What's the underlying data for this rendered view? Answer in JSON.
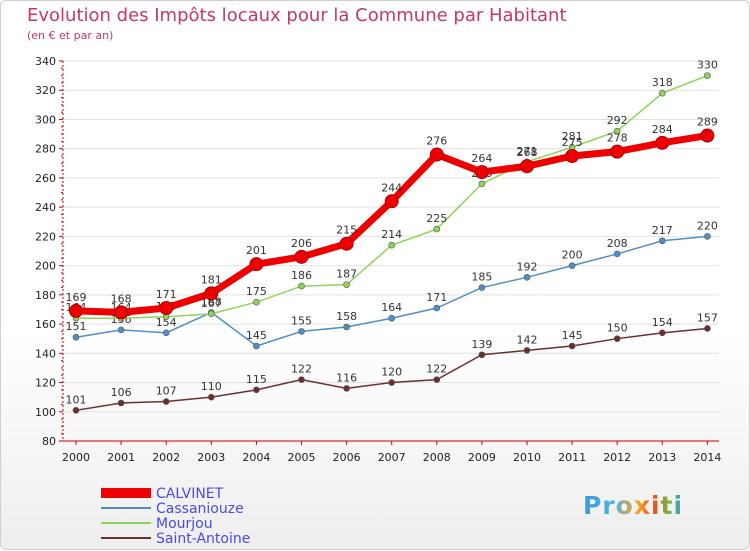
{
  "title": "Evolution des Impôts locaux pour la Commune par Habitant",
  "subtitle": "(en € et par an)",
  "logo_text": "Proxiti",
  "chart_data": {
    "type": "line",
    "x": [
      "2000",
      "2001",
      "2002",
      "2003",
      "2004",
      "2005",
      "2006",
      "2007",
      "2008",
      "2009",
      "2010",
      "2011",
      "2012",
      "2013",
      "2014"
    ],
    "ylim": [
      80,
      340
    ],
    "yticks": [
      80,
      100,
      120,
      140,
      160,
      180,
      200,
      220,
      240,
      260,
      280,
      300,
      320,
      340
    ],
    "grid": "horizontal",
    "legend_position": "bottom-left",
    "series": [
      {
        "name": "CALVINET",
        "color": "#ee0000",
        "highlight": true,
        "values": [
          169,
          168,
          171,
          181,
          201,
          206,
          215,
          244,
          276,
          264,
          268,
          275,
          278,
          284,
          289
        ]
      },
      {
        "name": "Cassaniouze",
        "color": "#4f8fc9",
        "highlight": false,
        "values": [
          151,
          156,
          154,
          168,
          145,
          155,
          158,
          164,
          171,
          185,
          192,
          200,
          208,
          217,
          220
        ]
      },
      {
        "name": "Mourjou",
        "color": "#8fd45a",
        "highlight": false,
        "values": [
          164,
          164,
          165,
          167,
          175,
          186,
          187,
          214,
          225,
          256,
          271,
          281,
          292,
          318,
          330
        ]
      },
      {
        "name": "Saint-Antoine",
        "color": "#6e2e2e",
        "highlight": false,
        "values": [
          101,
          106,
          107,
          110,
          115,
          122,
          116,
          120,
          122,
          139,
          142,
          145,
          150,
          154,
          157
        ]
      }
    ]
  }
}
